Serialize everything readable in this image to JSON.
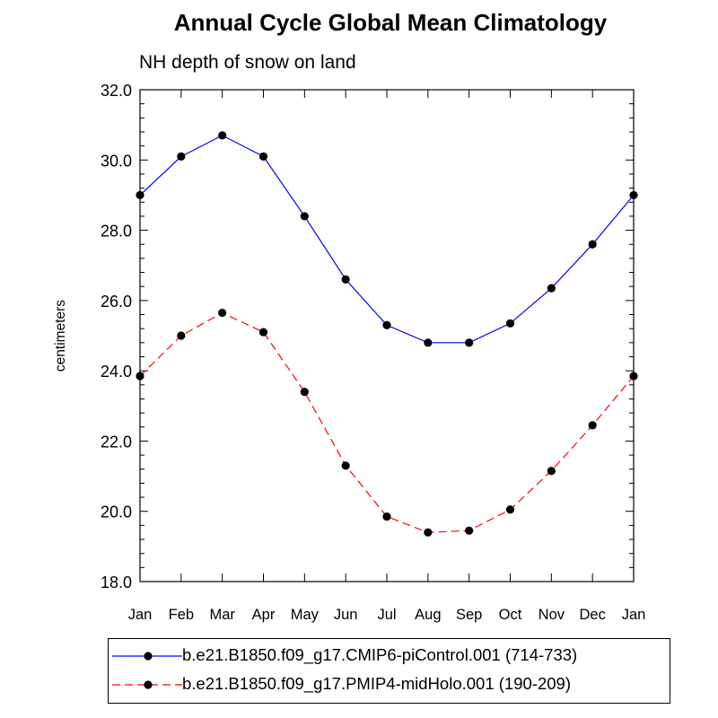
{
  "chart_data": {
    "type": "line",
    "title": "Annual Cycle Global Mean Climatology",
    "subtitle": "NH depth of snow on land",
    "ylabel": "centimeters",
    "xlabel": "",
    "categories": [
      "Jan",
      "Feb",
      "Mar",
      "Apr",
      "May",
      "Jun",
      "Jul",
      "Aug",
      "Sep",
      "Oct",
      "Nov",
      "Dec",
      "Jan"
    ],
    "ylim": [
      18.0,
      32.0
    ],
    "yticks": [
      "18.0",
      "20.0",
      "22.0",
      "24.0",
      "26.0",
      "28.0",
      "30.0",
      "32.0"
    ],
    "series": [
      {
        "name": "b.e21.B1850.f09_g17.CMIP6-piControl.001 (714-733)",
        "color": "#0000ff",
        "dash": "solid",
        "marker": "filled-circle",
        "values": [
          29.0,
          30.1,
          30.7,
          30.1,
          28.4,
          26.6,
          25.3,
          24.8,
          24.8,
          25.35,
          26.35,
          27.6,
          29.0
        ]
      },
      {
        "name": "b.e21.B1850.f09_g17.PMIP4-midHolo.001 (190-209)",
        "color": "#ff0000",
        "dash": "dashed",
        "marker": "filled-circle",
        "values": [
          23.85,
          25.0,
          25.65,
          25.1,
          23.4,
          21.3,
          19.85,
          19.4,
          19.45,
          20.05,
          21.15,
          22.45,
          23.85
        ]
      }
    ],
    "legend_position": "bottom",
    "grid": false
  }
}
